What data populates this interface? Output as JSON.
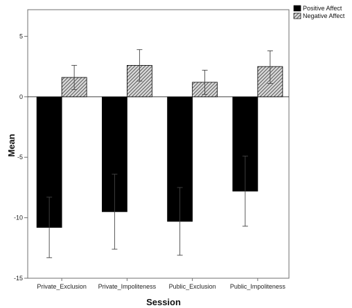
{
  "chart_data": {
    "type": "bar",
    "title": "",
    "xlabel": "Session",
    "ylabel": "Mean",
    "ylim": [
      -15,
      7.2
    ],
    "yticks": [
      5,
      0,
      -5,
      -10,
      -15
    ],
    "categories": [
      "Private_Exclusion",
      "Private_Impoliteness",
      "Public_Exclusion",
      "Public_Impoliteness"
    ],
    "series": [
      {
        "name": "Positive Affect",
        "values": [
          -10.8,
          -9.5,
          -10.3,
          -7.8
        ],
        "error_low": [
          -13.3,
          -12.6,
          -13.1,
          -10.7
        ],
        "error_high": [
          -8.3,
          -6.4,
          -7.5,
          -4.9
        ],
        "fill": "#000000",
        "pattern": "solid"
      },
      {
        "name": "Negative Affect",
        "values": [
          1.6,
          2.6,
          1.2,
          2.5
        ],
        "error_low": [
          0.6,
          1.3,
          0.2,
          1.1
        ],
        "error_high": [
          2.6,
          3.9,
          2.2,
          3.8
        ],
        "fill": "#cfcfcf",
        "pattern": "hatch"
      }
    ],
    "legend_position": "top-right",
    "grid": false
  }
}
